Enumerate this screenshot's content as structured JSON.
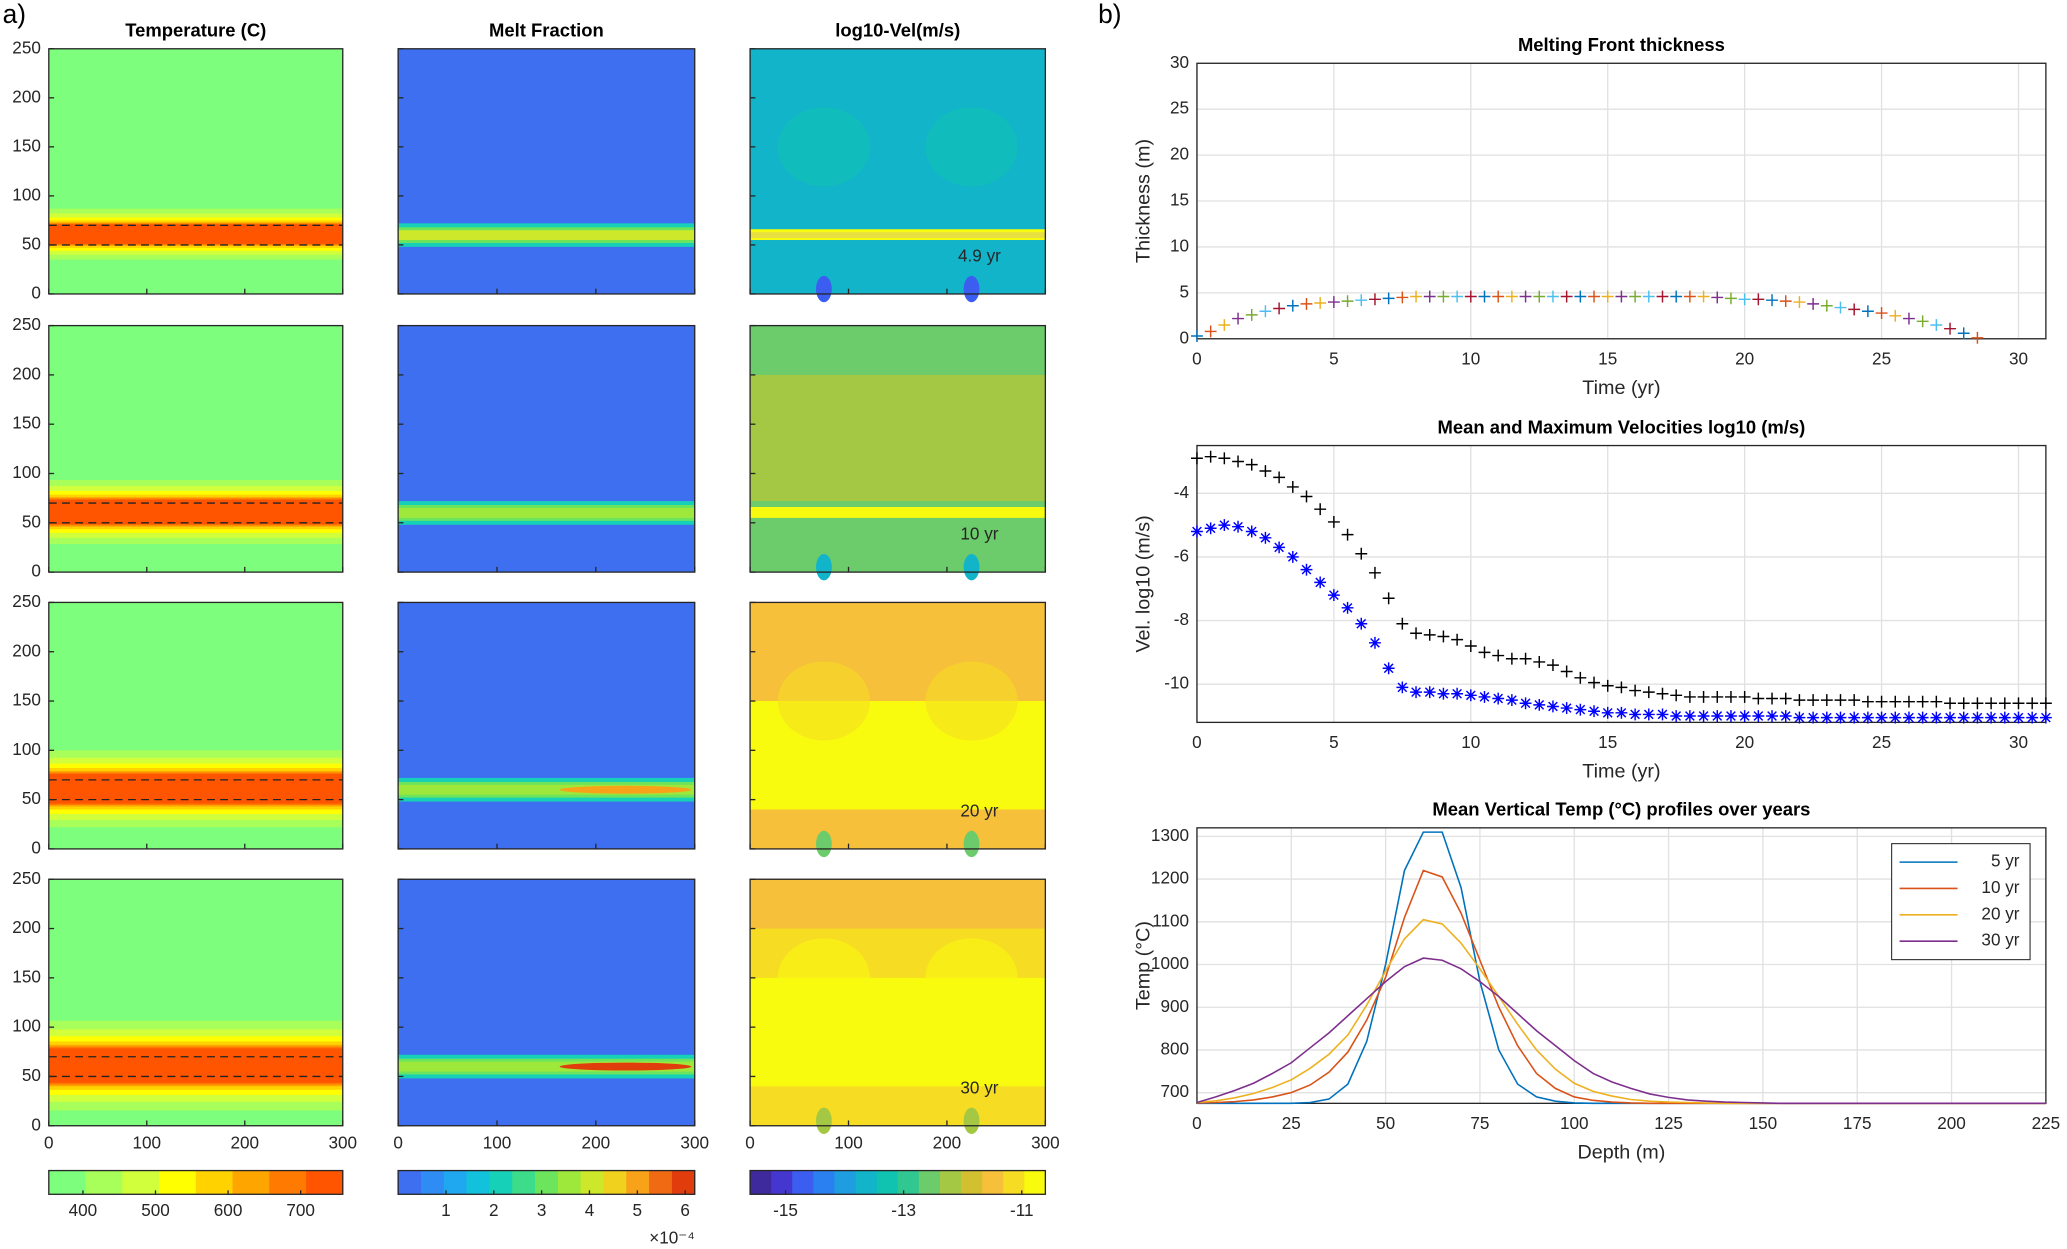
{
  "panel_labels": [
    "a)",
    "b)"
  ],
  "chart_data": [
    {
      "type": "contour-grid",
      "columns": [
        "Temperature (C)",
        "Melt Fraction",
        "log10-Vel(m/s)"
      ],
      "row_labels": [
        "4.9 yr",
        "10 yr",
        "20 yr",
        "30 yr"
      ],
      "xlim": [
        0,
        300
      ],
      "xticks": [
        0,
        100,
        200,
        300
      ],
      "ylim": [
        0,
        250
      ],
      "yticks": [
        0,
        50,
        100,
        150,
        200,
        250
      ],
      "colorbars": [
        {
          "lim": [
            353,
            758
          ],
          "ticks": [
            400,
            500,
            600,
            700
          ],
          "colors": [
            "#7dff7d",
            "#a8ff5a",
            "#d2ff3c",
            "#ffff00",
            "#ffd200",
            "#ffa500",
            "#ff7a00",
            "#ff5500"
          ]
        },
        {
          "lim": [
            0,
            6.2
          ],
          "ticks": [
            1,
            2,
            3,
            4,
            5,
            6
          ],
          "exponent_label": "×10⁻⁴",
          "colors": [
            "#3d6ff0",
            "#2f8cf5",
            "#1fa8f0",
            "#12c2dc",
            "#16d0b8",
            "#3cdc8a",
            "#6ce45c",
            "#9ee83c",
            "#cde82a",
            "#f0d21e",
            "#f8a21a",
            "#f06a14",
            "#e03c0c"
          ]
        },
        {
          "lim": [
            -15.6,
            -10.6
          ],
          "ticks": [
            -15,
            -13,
            -11
          ],
          "colors": [
            "#3e2a9c",
            "#4536d0",
            "#3c5ef0",
            "#2a80f0",
            "#1e9ee0",
            "#12b4ca",
            "#10c2b0",
            "#30c890",
            "#6ccb6a",
            "#a4c844",
            "#d2c030",
            "#f6c03a",
            "#f6dc22",
            "#f9fb0e"
          ]
        }
      ]
    },
    {
      "type": "scatter",
      "title": "Melting Front thickness",
      "xlabel": "Time (yr)",
      "ylabel": "Thickness (m)",
      "xlim": [
        0,
        31
      ],
      "xticks": [
        0,
        5,
        10,
        15,
        20,
        25,
        30
      ],
      "ylim": [
        0,
        30
      ],
      "yticks": [
        0,
        5,
        10,
        15,
        20,
        25,
        30
      ],
      "grid": true,
      "marker": "+",
      "color_cycle": [
        "#0072bd",
        "#d95319",
        "#edb120",
        "#7e2f8e",
        "#77ac30",
        "#4dbeee",
        "#a2142f"
      ],
      "x": [
        0,
        0.5,
        1,
        1.5,
        2,
        2.5,
        3,
        3.5,
        4,
        4.5,
        5,
        5.5,
        6,
        6.5,
        7,
        7.5,
        8,
        8.5,
        9,
        9.5,
        10,
        10.5,
        11,
        11.5,
        12,
        12.5,
        13,
        13.5,
        14,
        14.5,
        15,
        15.5,
        16,
        16.5,
        17,
        17.5,
        18,
        18.5,
        19,
        19.5,
        20,
        20.5,
        21,
        21.5,
        22,
        22.5,
        23,
        23.5,
        24,
        24.5,
        25,
        25.5,
        26,
        26.5,
        27,
        27.5,
        28,
        28.5
      ],
      "values": [
        0.3,
        0.8,
        1.5,
        2.2,
        2.6,
        3.0,
        3.3,
        3.6,
        3.8,
        3.9,
        4.0,
        4.1,
        4.2,
        4.3,
        4.4,
        4.5,
        4.6,
        4.6,
        4.6,
        4.6,
        4.6,
        4.6,
        4.6,
        4.6,
        4.6,
        4.6,
        4.6,
        4.6,
        4.6,
        4.6,
        4.6,
        4.6,
        4.6,
        4.6,
        4.6,
        4.6,
        4.6,
        4.6,
        4.5,
        4.4,
        4.3,
        4.3,
        4.2,
        4.1,
        4.0,
        3.8,
        3.6,
        3.4,
        3.2,
        3.0,
        2.8,
        2.5,
        2.2,
        1.9,
        1.5,
        1.1,
        0.6,
        0.1
      ]
    },
    {
      "type": "scatter",
      "title": "Mean and Maximum Velocities log10 (m/s)",
      "xlabel": "Time (yr)",
      "ylabel": "Vel. log10 (m/s)",
      "xlim": [
        0,
        31
      ],
      "xticks": [
        0,
        5,
        10,
        15,
        20,
        25,
        30
      ],
      "ylim": [
        -11.2,
        -2.5
      ],
      "yticks": [
        -10,
        -8,
        -6,
        -4
      ],
      "grid": true,
      "x": [
        0,
        0.5,
        1,
        1.5,
        2,
        2.5,
        3,
        3.5,
        4,
        4.5,
        5,
        5.5,
        6,
        6.5,
        7,
        7.5,
        8,
        8.5,
        9,
        9.5,
        10,
        10.5,
        11,
        11.5,
        12,
        12.5,
        13,
        13.5,
        14,
        14.5,
        15,
        15.5,
        16,
        16.5,
        17,
        17.5,
        18,
        18.5,
        19,
        19.5,
        20,
        20.5,
        21,
        21.5,
        22,
        22.5,
        23,
        23.5,
        24,
        24.5,
        25,
        25.5,
        26,
        26.5,
        27,
        27.5,
        28,
        28.5,
        29,
        29.5,
        30,
        30.5,
        31
      ],
      "series": [
        {
          "color": "#000000",
          "marker": "+",
          "values": [
            -2.9,
            -2.85,
            -2.9,
            -3.0,
            -3.1,
            -3.3,
            -3.5,
            -3.8,
            -4.1,
            -4.5,
            -4.9,
            -5.3,
            -5.9,
            -6.5,
            -7.3,
            -8.1,
            -8.4,
            -8.45,
            -8.5,
            -8.6,
            -8.8,
            -9.0,
            -9.1,
            -9.2,
            -9.2,
            -9.3,
            -9.4,
            -9.6,
            -9.8,
            -9.95,
            -10.05,
            -10.1,
            -10.2,
            -10.25,
            -10.3,
            -10.35,
            -10.4,
            -10.4,
            -10.4,
            -10.4,
            -10.4,
            -10.45,
            -10.45,
            -10.45,
            -10.5,
            -10.5,
            -10.5,
            -10.5,
            -10.5,
            -10.55,
            -10.55,
            -10.55,
            -10.55,
            -10.55,
            -10.55,
            -10.6,
            -10.6,
            -10.6,
            -10.6,
            -10.6,
            -10.6,
            -10.6,
            -10.6
          ]
        },
        {
          "color": "#0000ff",
          "marker": "*",
          "values": [
            -5.2,
            -5.1,
            -5.0,
            -5.05,
            -5.2,
            -5.4,
            -5.7,
            -6.0,
            -6.4,
            -6.8,
            -7.2,
            -7.6,
            -8.1,
            -8.7,
            -9.5,
            -10.1,
            -10.25,
            -10.25,
            -10.3,
            -10.3,
            -10.35,
            -10.4,
            -10.45,
            -10.5,
            -10.6,
            -10.65,
            -10.7,
            -10.75,
            -10.8,
            -10.85,
            -10.9,
            -10.9,
            -10.95,
            -10.95,
            -10.95,
            -11.0,
            -11.0,
            -11.0,
            -11.0,
            -11.0,
            -11.0,
            -11.0,
            -11.0,
            -11.0,
            -11.05,
            -11.05,
            -11.05,
            -11.05,
            -11.05,
            -11.05,
            -11.05,
            -11.05,
            -11.05,
            -11.05,
            -11.05,
            -11.05,
            -11.05,
            -11.05,
            -11.05,
            -11.05,
            -11.05,
            -11.05,
            -11.05
          ]
        }
      ]
    },
    {
      "type": "line",
      "title": "Mean Vertical Temp (°C) profiles over years",
      "xlabel": "Depth (m)",
      "ylabel": "Temp (°C)",
      "xlim": [
        0,
        225
      ],
      "xticks": [
        0,
        25,
        50,
        75,
        100,
        125,
        150,
        175,
        200,
        225
      ],
      "ylim": [
        675,
        1320
      ],
      "yticks": [
        700,
        800,
        900,
        1000,
        1100,
        1200,
        1300
      ],
      "grid": true,
      "legend": "upper right",
      "x": [
        0,
        5,
        10,
        15,
        20,
        25,
        30,
        35,
        40,
        45,
        50,
        55,
        60,
        65,
        70,
        75,
        80,
        85,
        90,
        95,
        100,
        105,
        110,
        115,
        120,
        125,
        130,
        135,
        140,
        145,
        150,
        155,
        160,
        165,
        170,
        175,
        180,
        185,
        190,
        195,
        200,
        205,
        210,
        215,
        220,
        225
      ],
      "series": [
        {
          "name": "5 yr",
          "color": "#0072bd",
          "values": [
            675,
            675,
            675,
            675,
            675,
            675,
            677,
            685,
            720,
            820,
            1000,
            1220,
            1310,
            1310,
            1180,
            960,
            800,
            720,
            690,
            680,
            676,
            675,
            675,
            675,
            675,
            675,
            675,
            675,
            675,
            675,
            675,
            675,
            675,
            675,
            675,
            675,
            675,
            675,
            675,
            675,
            675,
            675,
            675,
            675,
            675,
            675
          ]
        },
        {
          "name": "10 yr",
          "color": "#d95319",
          "values": [
            676,
            677,
            679,
            683,
            690,
            700,
            718,
            748,
            795,
            870,
            970,
            1110,
            1220,
            1205,
            1120,
            1010,
            900,
            810,
            745,
            710,
            690,
            682,
            678,
            676,
            675,
            675,
            675,
            675,
            675,
            675,
            675,
            675,
            675,
            675,
            675,
            675,
            675,
            675,
            675,
            675,
            675,
            675,
            675,
            675,
            675,
            675
          ]
        },
        {
          "name": "20 yr",
          "color": "#edb120",
          "values": [
            677,
            681,
            688,
            698,
            712,
            730,
            757,
            790,
            835,
            905,
            985,
            1060,
            1105,
            1095,
            1050,
            990,
            925,
            860,
            800,
            755,
            722,
            703,
            692,
            684,
            680,
            678,
            677,
            676,
            675,
            675,
            675,
            675,
            675,
            675,
            675,
            675,
            675,
            675,
            675,
            675,
            675,
            675,
            675,
            675,
            675,
            675
          ]
        },
        {
          "name": "30 yr",
          "color": "#7e2f8e",
          "values": [
            677,
            690,
            705,
            722,
            745,
            770,
            805,
            840,
            880,
            920,
            960,
            995,
            1015,
            1010,
            990,
            960,
            925,
            885,
            845,
            810,
            775,
            745,
            725,
            710,
            697,
            689,
            683,
            680,
            678,
            677,
            676,
            675,
            675,
            675,
            675,
            675,
            675,
            675,
            675,
            675,
            675,
            675,
            675,
            675,
            675,
            675
          ]
        }
      ]
    }
  ]
}
